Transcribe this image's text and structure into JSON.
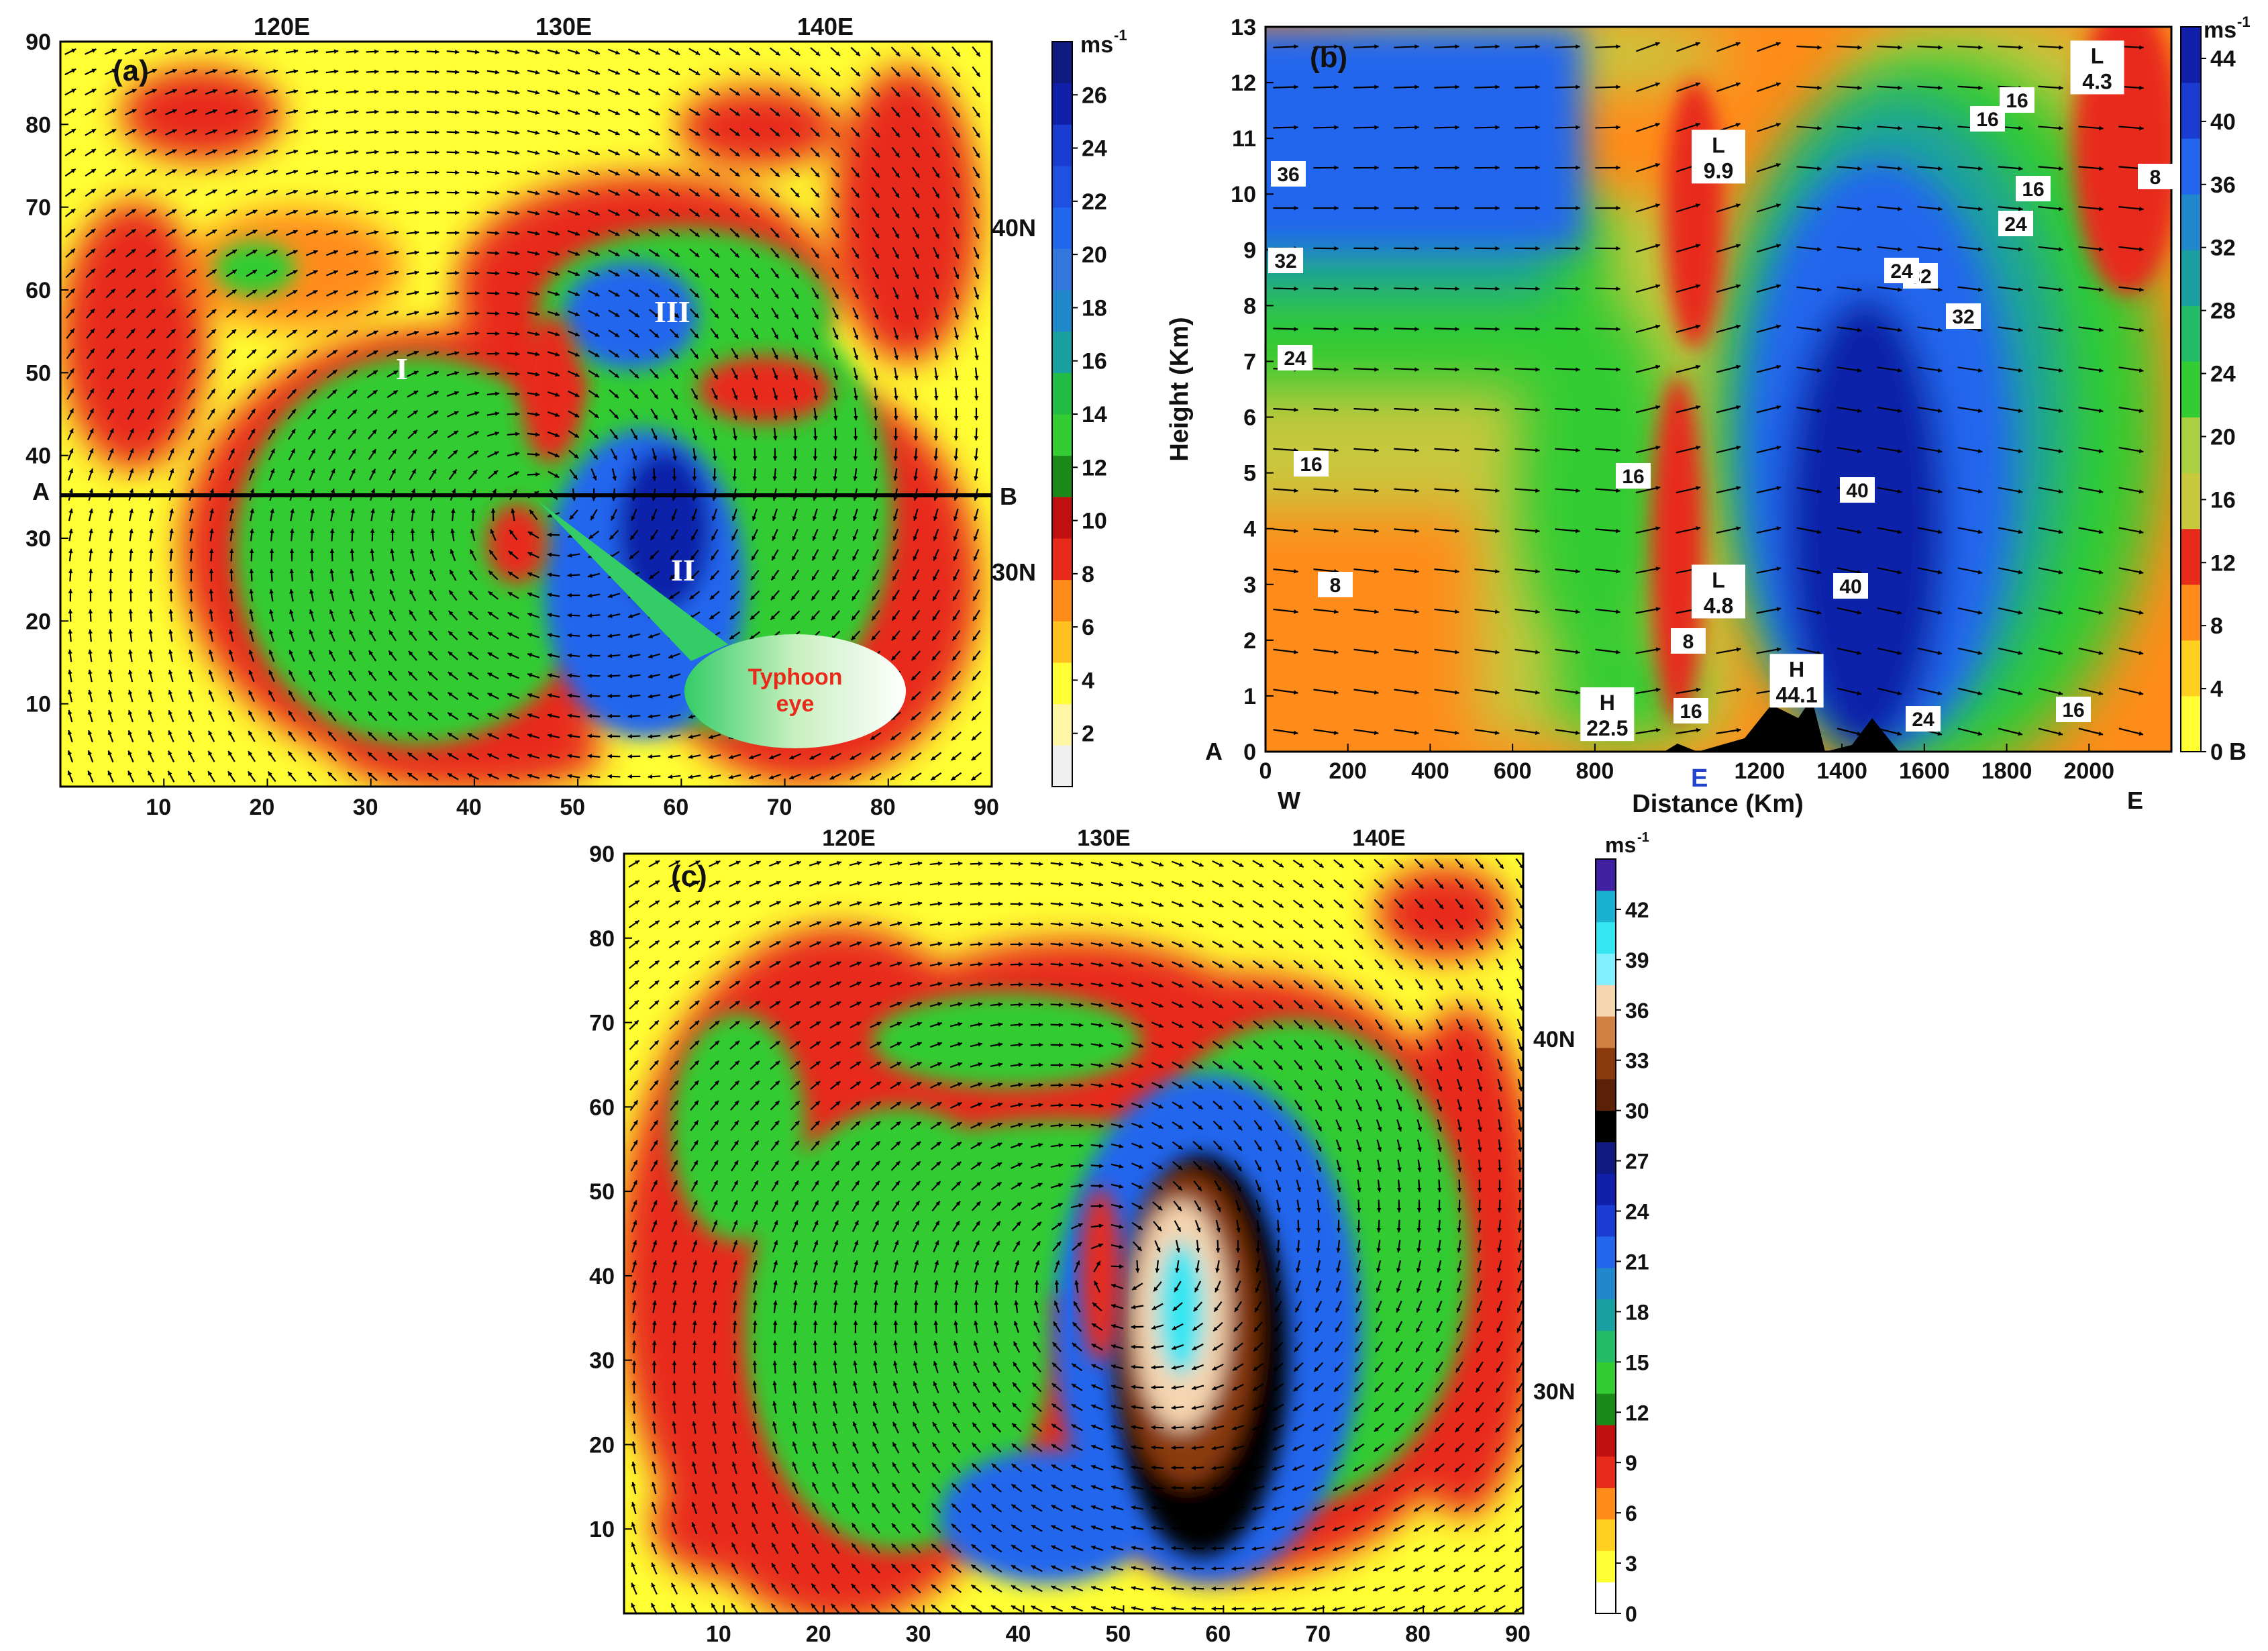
{
  "colors": {
    "pale_yellow": "#fff6a8",
    "yellow": "#ffff33",
    "orange": "#ff8c1a",
    "red": "#e82a1a",
    "dark_green": "#1b8a1b",
    "green": "#33cc33",
    "teal": "#1aa0a0",
    "blue": "#2266ee",
    "navy": "#1020aa",
    "black": "#000000",
    "brown": "#8b3a10",
    "white": "#ffffff",
    "cyan": "#33e6f2"
  },
  "panel_a": {
    "panel_label": "(a)",
    "top_ticks": [
      "120E",
      "130E",
      "140E"
    ],
    "right_lat_ticks": [
      "40N",
      "30N"
    ],
    "x_ticks": [
      "10",
      "20",
      "30",
      "40",
      "50",
      "60",
      "70",
      "80",
      "90"
    ],
    "y_ticks": [
      "90",
      "80",
      "70",
      "60",
      "50",
      "40",
      "30",
      "20",
      "10"
    ],
    "section_start": "A",
    "section_end": "B",
    "regions": [
      "I",
      "II",
      "III"
    ],
    "callout_line1": "Typhoon",
    "callout_line2": "eye",
    "colorbar_unit": "ms",
    "colorbar_unit_sup": "-1",
    "colorbar_ticks": [
      "26",
      "24",
      "22",
      "20",
      "18",
      "16",
      "14",
      "12",
      "10",
      "8",
      "6",
      "4",
      "2"
    ]
  },
  "panel_b": {
    "panel_label": "(b)",
    "ylabel": "Height (Km)",
    "xlabel": "Distance (Km)",
    "x_ticks": [
      "0",
      "200",
      "400",
      "600",
      "800",
      "1000",
      "1200",
      "1400",
      "1600",
      "1800",
      "2000"
    ],
    "y_ticks": [
      "13",
      "12",
      "11",
      "10",
      "9",
      "8",
      "7",
      "6",
      "5",
      "4",
      "3",
      "2",
      "1",
      "0"
    ],
    "corner_left": "A",
    "corner_right": "B",
    "bottom_left": "W",
    "bottom_mid": "E",
    "bottom_right": "E",
    "contour_labels": [
      "36",
      "32",
      "24",
      "16",
      "8",
      "16",
      "16",
      "8",
      "16",
      "24",
      "32",
      "32",
      "24",
      "16",
      "16",
      "8",
      "40",
      "40",
      "24",
      "16"
    ],
    "extrema": [
      {
        "letter": "L",
        "value": "9.9"
      },
      {
        "letter": "L",
        "value": "4.3"
      },
      {
        "letter": "L",
        "value": "4.8"
      },
      {
        "letter": "H",
        "value": "22.5"
      },
      {
        "letter": "H",
        "value": "44.1"
      }
    ],
    "colorbar_unit": "ms",
    "colorbar_unit_sup": "-1",
    "colorbar_ticks": [
      "44",
      "40",
      "36",
      "32",
      "28",
      "24",
      "20",
      "16",
      "12",
      "8",
      "4",
      "0"
    ]
  },
  "panel_c": {
    "panel_label": "(c)",
    "top_ticks": [
      "120E",
      "130E",
      "140E"
    ],
    "right_lat_ticks": [
      "40N",
      "30N"
    ],
    "x_ticks": [
      "10",
      "20",
      "30",
      "40",
      "50",
      "60",
      "70",
      "80",
      "90"
    ],
    "y_ticks": [
      "90",
      "80",
      "70",
      "60",
      "50",
      "40",
      "30",
      "20",
      "10"
    ],
    "colorbar_unit": "ms",
    "colorbar_unit_sup": "-1",
    "colorbar_ticks": [
      "42",
      "39",
      "36",
      "33",
      "30",
      "27",
      "24",
      "21",
      "18",
      "15",
      "12",
      "9",
      "6",
      "3",
      "0"
    ]
  },
  "chart_data": [
    {
      "type": "heatmap",
      "panel": "(a)",
      "description_fields": {
        "xlim": [
          0,
          90
        ],
        "ylim": [
          0,
          90
        ]
      },
      "colorbar": {
        "min": 0,
        "max": 28,
        "ticks": [
          2,
          4,
          6,
          8,
          10,
          12,
          14,
          16,
          18,
          20,
          22,
          24,
          26
        ]
      },
      "regions": [
        "I",
        "II",
        "III"
      ],
      "section_line": {
        "from": "A",
        "to": "B",
        "y": 36
      }
    },
    {
      "type": "heatmap",
      "panel": "(b)",
      "xlabel": "Distance (Km)",
      "ylabel": "Height (Km)",
      "xlim": [
        0,
        2200
      ],
      "ylim": [
        0,
        13
      ],
      "colorbar": {
        "min": 0,
        "max": 46,
        "ticks": [
          0,
          4,
          8,
          12,
          16,
          20,
          24,
          28,
          32,
          36,
          40,
          44
        ]
      },
      "extrema": [
        {
          "type": "L",
          "value": 9.9,
          "x": 1100,
          "y": 10.6
        },
        {
          "type": "L",
          "value": 4.3,
          "x": 2020,
          "y": 12.2
        },
        {
          "type": "L",
          "value": 4.8,
          "x": 1100,
          "y": 2.8
        },
        {
          "type": "H",
          "value": 22.5,
          "x": 830,
          "y": 0.6
        },
        {
          "type": "H",
          "value": 44.1,
          "x": 1290,
          "y": 1.2
        }
      ]
    },
    {
      "type": "heatmap",
      "panel": "(c)",
      "xlim": [
        0,
        90
      ],
      "ylim": [
        0,
        90
      ],
      "colorbar": {
        "min": 0,
        "max": 45,
        "ticks": [
          0,
          3,
          6,
          9,
          12,
          15,
          18,
          21,
          24,
          27,
          30,
          33,
          36,
          39,
          42
        ]
      }
    }
  ]
}
